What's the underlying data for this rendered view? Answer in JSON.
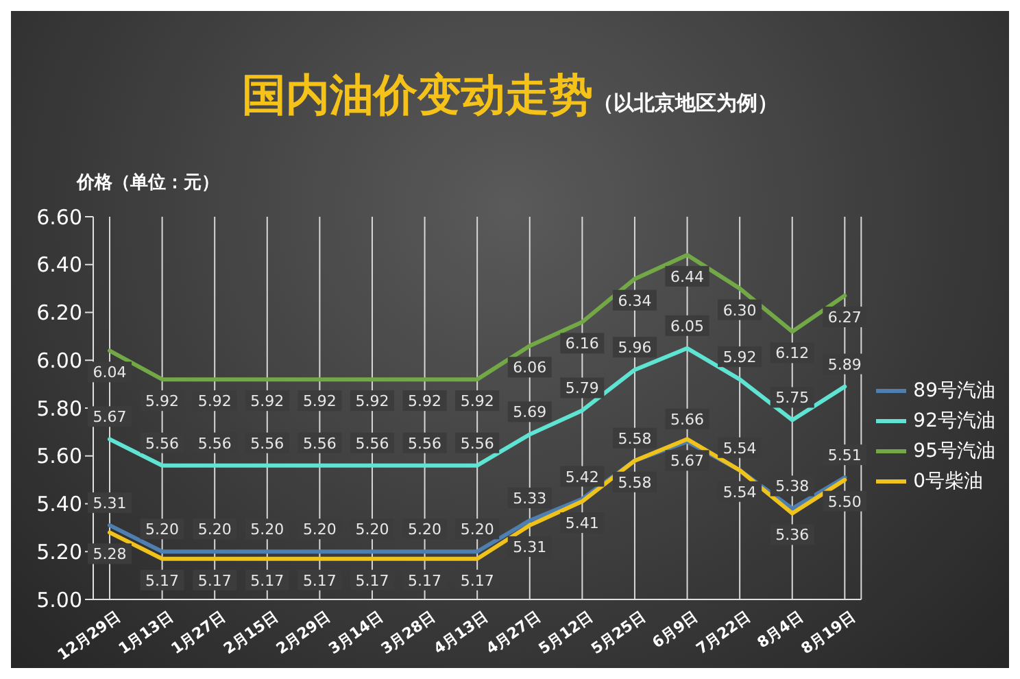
{
  "chart_data": {
    "type": "line",
    "title": "国内油价变动走势",
    "subtitle": "（以北京地区为例）",
    "ylabel": "价格（单位：元）",
    "categories": [
      "12月29日",
      "1月13日",
      "1月27日",
      "2月15日",
      "2月29日",
      "3月14日",
      "3月28日",
      "4月13日",
      "4月27日",
      "5月12日",
      "5月25日",
      "6月9日",
      "7月22日",
      "8月4日",
      "8月19日"
    ],
    "series": [
      {
        "name": "89号汽油",
        "color": "#4f7fb0",
        "values": [
          5.31,
          5.2,
          5.2,
          5.2,
          5.2,
          5.2,
          5.2,
          5.2,
          5.33,
          5.42,
          5.58,
          5.66,
          5.54,
          5.38,
          5.51
        ],
        "value_labels": [
          "5.31",
          "5.20",
          "5.20",
          "5.20",
          "5.20",
          "5.20",
          "5.20",
          "5.20",
          "5.33",
          "5.42",
          "5.58",
          "5.66",
          "5.54",
          "5.38",
          "5.51"
        ]
      },
      {
        "name": "92号汽油",
        "color": "#5fe3d2",
        "values": [
          5.67,
          5.56,
          5.56,
          5.56,
          5.56,
          5.56,
          5.56,
          5.56,
          5.69,
          5.79,
          5.96,
          6.05,
          5.92,
          5.75,
          5.89
        ],
        "value_labels": [
          "5.67",
          "5.56",
          "5.56",
          "5.56",
          "5.56",
          "5.56",
          "5.56",
          "5.56",
          "5.69",
          "5.79",
          "5.96",
          "6.05",
          "5.92",
          "5.75",
          "5.89"
        ]
      },
      {
        "name": "95号汽油",
        "color": "#72a845",
        "values": [
          6.04,
          5.92,
          5.92,
          5.92,
          5.92,
          5.92,
          5.92,
          5.92,
          6.06,
          6.16,
          6.34,
          6.44,
          6.3,
          6.12,
          6.27
        ],
        "value_labels": [
          "6.04",
          "5.92",
          "5.92",
          "5.92",
          "5.92",
          "5.92",
          "5.92",
          "5.92",
          "6.06",
          "6.16",
          "6.34",
          "6.44",
          "6.30",
          "6.12",
          "6.27"
        ]
      },
      {
        "name": "0号柴油",
        "color": "#f0c21c",
        "values": [
          5.28,
          5.17,
          5.17,
          5.17,
          5.17,
          5.17,
          5.17,
          5.17,
          5.31,
          5.41,
          5.58,
          5.67,
          5.54,
          5.36,
          5.5
        ],
        "value_labels": [
          "5.28",
          "5.17",
          "5.17",
          "5.17",
          "5.17",
          "5.17",
          "5.17",
          "5.17",
          "5.31",
          "5.41",
          "5.58",
          "5.67",
          "5.54",
          "5.36",
          "5.50"
        ]
      }
    ],
    "ylim": [
      5.0,
      6.6
    ],
    "yticks": [
      {
        "value": 5.0,
        "label": "5.00"
      },
      {
        "value": 5.2,
        "label": "5.20"
      },
      {
        "value": 5.4,
        "label": "5.40"
      },
      {
        "value": 5.6,
        "label": "5.60"
      },
      {
        "value": 5.8,
        "label": "5.80"
      },
      {
        "value": 6.0,
        "label": "6.00"
      },
      {
        "value": 6.2,
        "label": "6.20"
      },
      {
        "value": 6.4,
        "label": "6.40"
      },
      {
        "value": 6.6,
        "label": "6.60"
      }
    ],
    "grid": "x",
    "legend": "right",
    "marker": "none",
    "line_style": "solid"
  }
}
